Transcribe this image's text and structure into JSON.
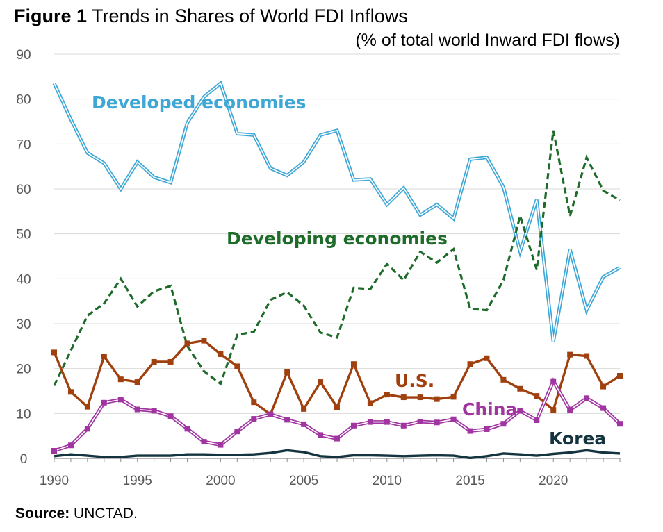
{
  "header": {
    "title_prefix": "Figure 1",
    "title_rest": "Trends in Shares of World FDI Inflows",
    "subtitle": "(% of total world Inward FDI flows)"
  },
  "footer": {
    "source_label": "Source:",
    "source_text": "UNCTAD."
  },
  "chart_data": {
    "type": "line",
    "title": "Figure 1 Trends in Shares of World FDI Inflows",
    "subtitle": "(% of total world Inward FDI flows)",
    "xlabel": "",
    "ylabel": "",
    "ylim": [
      0,
      90
    ],
    "yticks": [
      0,
      10,
      20,
      30,
      40,
      50,
      60,
      70,
      80,
      90
    ],
    "xlim": [
      1990,
      2024
    ],
    "xticks": [
      1990,
      1995,
      2000,
      2005,
      2010,
      2015,
      2020
    ],
    "grid": true,
    "legend": "none",
    "x": [
      1990,
      1991,
      1992,
      1993,
      1994,
      1995,
      1996,
      1997,
      1998,
      1999,
      2000,
      2001,
      2002,
      2003,
      2004,
      2005,
      2006,
      2007,
      2008,
      2009,
      2010,
      2011,
      2012,
      2013,
      2014,
      2015,
      2016,
      2017,
      2018,
      2019,
      2020,
      2021,
      2022,
      2023,
      2024
    ],
    "series": [
      {
        "name": "Developed economies",
        "color": "#3fa7d6",
        "style": "double",
        "values": [
          83.5,
          75.5,
          68,
          65.7,
          60,
          66,
          62.6,
          61.4,
          74.7,
          80.5,
          83.5,
          72.3,
          72,
          64.6,
          63,
          66,
          72,
          73,
          62,
          62.2,
          56.5,
          60.2,
          54.2,
          56.5,
          53.4,
          66.6,
          67,
          60.4,
          46,
          57.6,
          26,
          46.5,
          33,
          40.4,
          42.5
        ]
      },
      {
        "name": "Developing economies",
        "color": "#1e6b2a",
        "style": "dashed",
        "values": [
          16.2,
          24,
          31.8,
          34.5,
          40,
          33.8,
          37.2,
          38.4,
          25,
          19.4,
          16.6,
          27.5,
          28.2,
          35.3,
          37,
          34,
          28,
          26.9,
          38,
          37.7,
          43.3,
          39.7,
          46,
          43.6,
          46.6,
          33.3,
          33,
          39.7,
          54,
          42,
          73,
          54,
          67,
          59.6,
          57.5
        ]
      },
      {
        "name": "U.S.",
        "color": "#a0400e",
        "style": "markers",
        "values": [
          23.6,
          14.8,
          11.5,
          22.7,
          17.6,
          17,
          21.5,
          21.5,
          25.6,
          26.2,
          23.2,
          20.5,
          12.5,
          9.8,
          19.2,
          11,
          17,
          11.4,
          21,
          12.3,
          14.2,
          13.6,
          13.6,
          13.2,
          13.7,
          21,
          22.3,
          17.5,
          15.5,
          13.9,
          10.8,
          23.1,
          22.8,
          16,
          18.4
        ]
      },
      {
        "name": "China",
        "color": "#a034a0",
        "style": "double-markers",
        "values": [
          1.7,
          2.9,
          6.6,
          12.4,
          13.1,
          10.9,
          10.6,
          9.4,
          6.6,
          3.7,
          3,
          6,
          8.8,
          9.8,
          8.6,
          7.6,
          5.2,
          4.4,
          7.3,
          8.1,
          8.1,
          7.3,
          8.2,
          8,
          8.7,
          6.1,
          6.5,
          7.7,
          10.6,
          8.5,
          17.2,
          10.8,
          13.4,
          11.2,
          7.7
        ]
      },
      {
        "name": "Korea",
        "color": "#14343f",
        "style": "solid",
        "values": [
          0.5,
          0.9,
          0.6,
          0.3,
          0.3,
          0.6,
          0.6,
          0.6,
          0.9,
          0.9,
          0.8,
          0.8,
          0.9,
          1.2,
          1.8,
          1.4,
          0.5,
          0.3,
          0.7,
          0.7,
          0.6,
          0.5,
          0.6,
          0.7,
          0.6,
          0.1,
          0.5,
          1.1,
          0.9,
          0.6,
          1,
          1.3,
          1.8,
          1.3,
          1.1
        ]
      }
    ]
  }
}
